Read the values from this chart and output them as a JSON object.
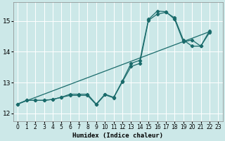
{
  "xlabel": "Humidex (Indice chaleur)",
  "xlim": [
    -0.5,
    23.5
  ],
  "ylim": [
    11.75,
    15.6
  ],
  "yticks": [
    12,
    13,
    14,
    15
  ],
  "xticks": [
    0,
    1,
    2,
    3,
    4,
    5,
    6,
    7,
    8,
    9,
    10,
    11,
    12,
    13,
    14,
    15,
    16,
    17,
    18,
    19,
    20,
    21,
    22,
    23
  ],
  "bg_color": "#cce8e8",
  "grid_color": "#ffffff",
  "line_color": "#1a6b6b",
  "series1_x": [
    0,
    1,
    2,
    3,
    4,
    5,
    6,
    7,
    8,
    9,
    10,
    11,
    12,
    13,
    14,
    15,
    16,
    17,
    18,
    19,
    20,
    21,
    22
  ],
  "series1_y": [
    12.3,
    12.42,
    12.42,
    12.42,
    12.45,
    12.52,
    12.62,
    12.62,
    12.62,
    12.3,
    12.62,
    12.52,
    13.05,
    13.62,
    13.72,
    15.05,
    15.32,
    15.3,
    15.05,
    14.32,
    14.38,
    14.18,
    14.62
  ],
  "series2_x": [
    0,
    1,
    2,
    3,
    4,
    5,
    6,
    7,
    8,
    9,
    10,
    11,
    12,
    13,
    14,
    15,
    16,
    17,
    18,
    19,
    20,
    21,
    22
  ],
  "series2_y": [
    12.3,
    12.42,
    12.42,
    12.42,
    12.45,
    12.52,
    12.58,
    12.58,
    12.58,
    12.28,
    12.6,
    12.5,
    13.02,
    13.52,
    13.62,
    15.02,
    15.22,
    15.28,
    15.1,
    14.38,
    14.18,
    14.18,
    14.68
  ],
  "line_x": [
    0,
    22
  ],
  "line_y": [
    12.3,
    14.65
  ]
}
